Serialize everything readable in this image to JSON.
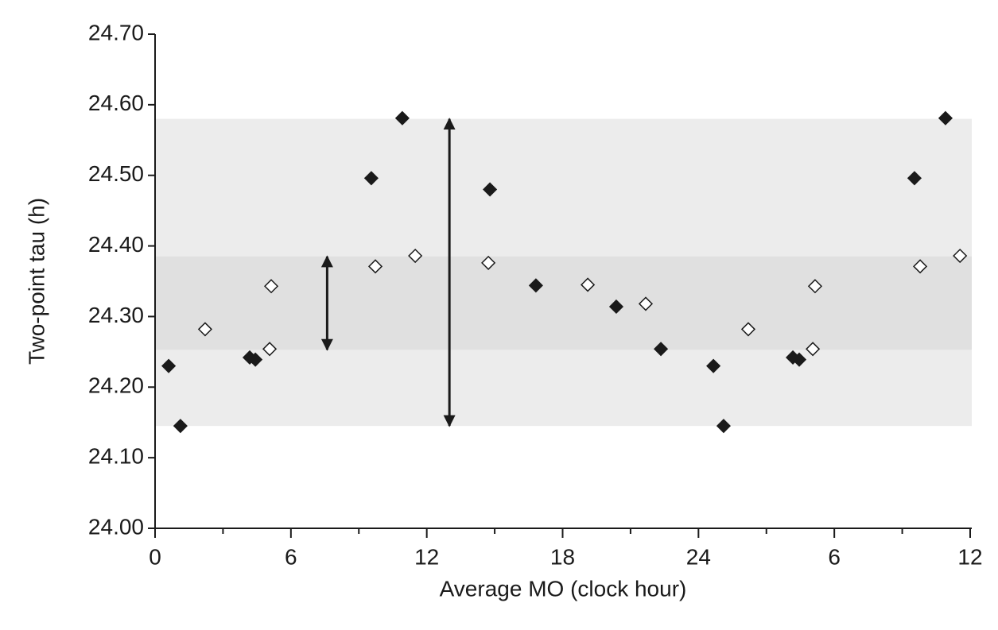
{
  "chart_data": {
    "type": "scatter",
    "xlabel": "Average MO (clock hour)",
    "ylabel": "Two-point tau (h)",
    "xlim": [
      0,
      36
    ],
    "xticks": [
      0,
      6,
      12,
      18,
      24,
      {
        "value": 30,
        "label": "6"
      },
      {
        "value": 36,
        "label": "12"
      }
    ],
    "ylim": [
      24,
      24.7
    ],
    "yticks": [
      {
        "value": 24,
        "label": "24.00"
      },
      {
        "value": 24.1,
        "label": "24.10"
      },
      {
        "value": 24.2,
        "label": "24.20"
      },
      {
        "value": 24.3,
        "label": "24.30"
      },
      {
        "value": 24.4,
        "label": "24.40"
      },
      {
        "value": 24.5,
        "label": "24.50"
      },
      {
        "value": 24.6,
        "label": "24.60"
      },
      {
        "value": 24.7,
        "label": "24.70"
      }
    ],
    "bands": [
      {
        "ylim": [
          24.145,
          24.58
        ],
        "color": "#ececec"
      },
      {
        "ylim": [
          24.253,
          24.385
        ],
        "color": "#e0e0e0"
      }
    ],
    "arrows": [
      {
        "x": 7.6,
        "ylim": [
          24.253,
          24.385
        ]
      },
      {
        "x": 13.0,
        "ylim": [
          24.145,
          24.58
        ]
      }
    ],
    "series": [
      {
        "color": "#1a1a1a",
        "fill": "#1a1a1a",
        "x": [
          0.6,
          1.12,
          4.18,
          4.43,
          9.55,
          10.92,
          14.79,
          16.82,
          20.37,
          22.34,
          24.66,
          25.11,
          28.17,
          28.45,
          33.54,
          34.91
        ],
        "values": [
          24.23,
          24.145,
          24.242,
          24.239,
          24.496,
          24.581,
          24.48,
          24.344,
          24.314,
          24.254,
          24.23,
          24.145,
          24.242,
          24.239,
          24.496,
          24.581
        ]
      },
      {
        "color": "#1a1a1a",
        "fill": "#ffffff",
        "x": [
          2.21,
          5.06,
          5.13,
          9.73,
          11.49,
          14.72,
          19.11,
          21.67,
          26.2,
          29.05,
          29.15,
          33.79,
          35.55
        ],
        "values": [
          24.282,
          24.254,
          24.343,
          24.371,
          24.386,
          24.376,
          24.345,
          24.318,
          24.282,
          24.254,
          24.343,
          24.371,
          24.386
        ]
      }
    ]
  }
}
